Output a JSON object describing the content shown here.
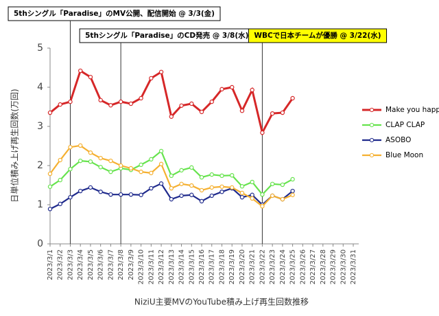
{
  "chart_data": {
    "type": "line",
    "x_label": "NiziU主要MVのYouTube積み上げ再生回数推移",
    "y_label": "日単位積み上げ再生回数(万回)",
    "categories": [
      "2023/3/1",
      "2023/3/2",
      "2023/3/3",
      "2023/3/4",
      "2023/3/5",
      "2023/3/6",
      "2023/3/7",
      "2023/3/8",
      "2023/3/9",
      "2023/3/10",
      "2023/3/11",
      "2023/3/12",
      "2023/3/13",
      "2023/3/14",
      "2023/3/15",
      "2023/3/16",
      "2023/3/17",
      "2023/3/18",
      "2023/3/19",
      "2023/3/20",
      "2023/3/21",
      "2023/3/22",
      "2023/3/23",
      "2023/3/24",
      "2023/3/25",
      "2023/3/26",
      "2023/3/27",
      "2023/3/28",
      "2023/3/29",
      "2023/3/30",
      "2023/3/31"
    ],
    "series": [
      {
        "name": "Make you happy",
        "color": "#d62728",
        "values": [
          3.35,
          3.56,
          3.63,
          4.42,
          4.26,
          3.67,
          3.54,
          3.63,
          3.58,
          3.72,
          4.23,
          4.39,
          3.25,
          3.53,
          3.58,
          3.37,
          3.63,
          3.95,
          4.0,
          3.4,
          3.93,
          2.84,
          3.33,
          3.35,
          3.72,
          null,
          null,
          null,
          null,
          null,
          null
        ]
      },
      {
        "name": "CLAP CLAP",
        "color": "#66e34d",
        "values": [
          1.46,
          1.63,
          1.91,
          2.12,
          2.1,
          1.96,
          1.84,
          1.93,
          1.89,
          2.02,
          2.16,
          2.37,
          1.74,
          1.88,
          1.95,
          1.7,
          1.77,
          1.74,
          1.75,
          1.47,
          1.58,
          1.26,
          1.53,
          1.51,
          1.65,
          null,
          null,
          null,
          null,
          null,
          null
        ]
      },
      {
        "name": "ASOBO",
        "color": "#1f2a8c",
        "values": [
          0.89,
          1.02,
          1.19,
          1.35,
          1.44,
          1.33,
          1.26,
          1.26,
          1.26,
          1.25,
          1.42,
          1.54,
          1.14,
          1.23,
          1.25,
          1.09,
          1.23,
          1.33,
          1.42,
          1.19,
          1.25,
          1.0,
          1.23,
          1.14,
          1.35,
          null,
          null,
          null,
          null,
          null,
          null
        ]
      },
      {
        "name": "Blue Moon",
        "color": "#f5b030",
        "values": [
          1.79,
          2.14,
          2.47,
          2.51,
          2.33,
          2.19,
          2.12,
          2.0,
          1.93,
          1.84,
          1.81,
          2.04,
          1.42,
          1.53,
          1.49,
          1.37,
          1.44,
          1.46,
          1.44,
          1.3,
          1.16,
          0.96,
          1.23,
          1.14,
          1.25,
          null,
          null,
          null,
          null,
          null,
          null
        ]
      }
    ],
    "ylim": [
      0,
      5
    ],
    "yticks": [
      0,
      1,
      2,
      3,
      4,
      5
    ],
    "legend": "right",
    "annotations": [
      {
        "text": "5thシングル「Paradise」のMV公開、配信開始 @ 3/3(金)",
        "x": "2023/3/3"
      },
      {
        "text": "5thシングル「Paradise」のCD発売 @ 3/8(水)",
        "x": "2023/3/8"
      },
      {
        "text": "WBCで日本チームが優勝 @ 3/22(水)",
        "x": "2023/3/22",
        "background": "#ffff00"
      }
    ]
  }
}
